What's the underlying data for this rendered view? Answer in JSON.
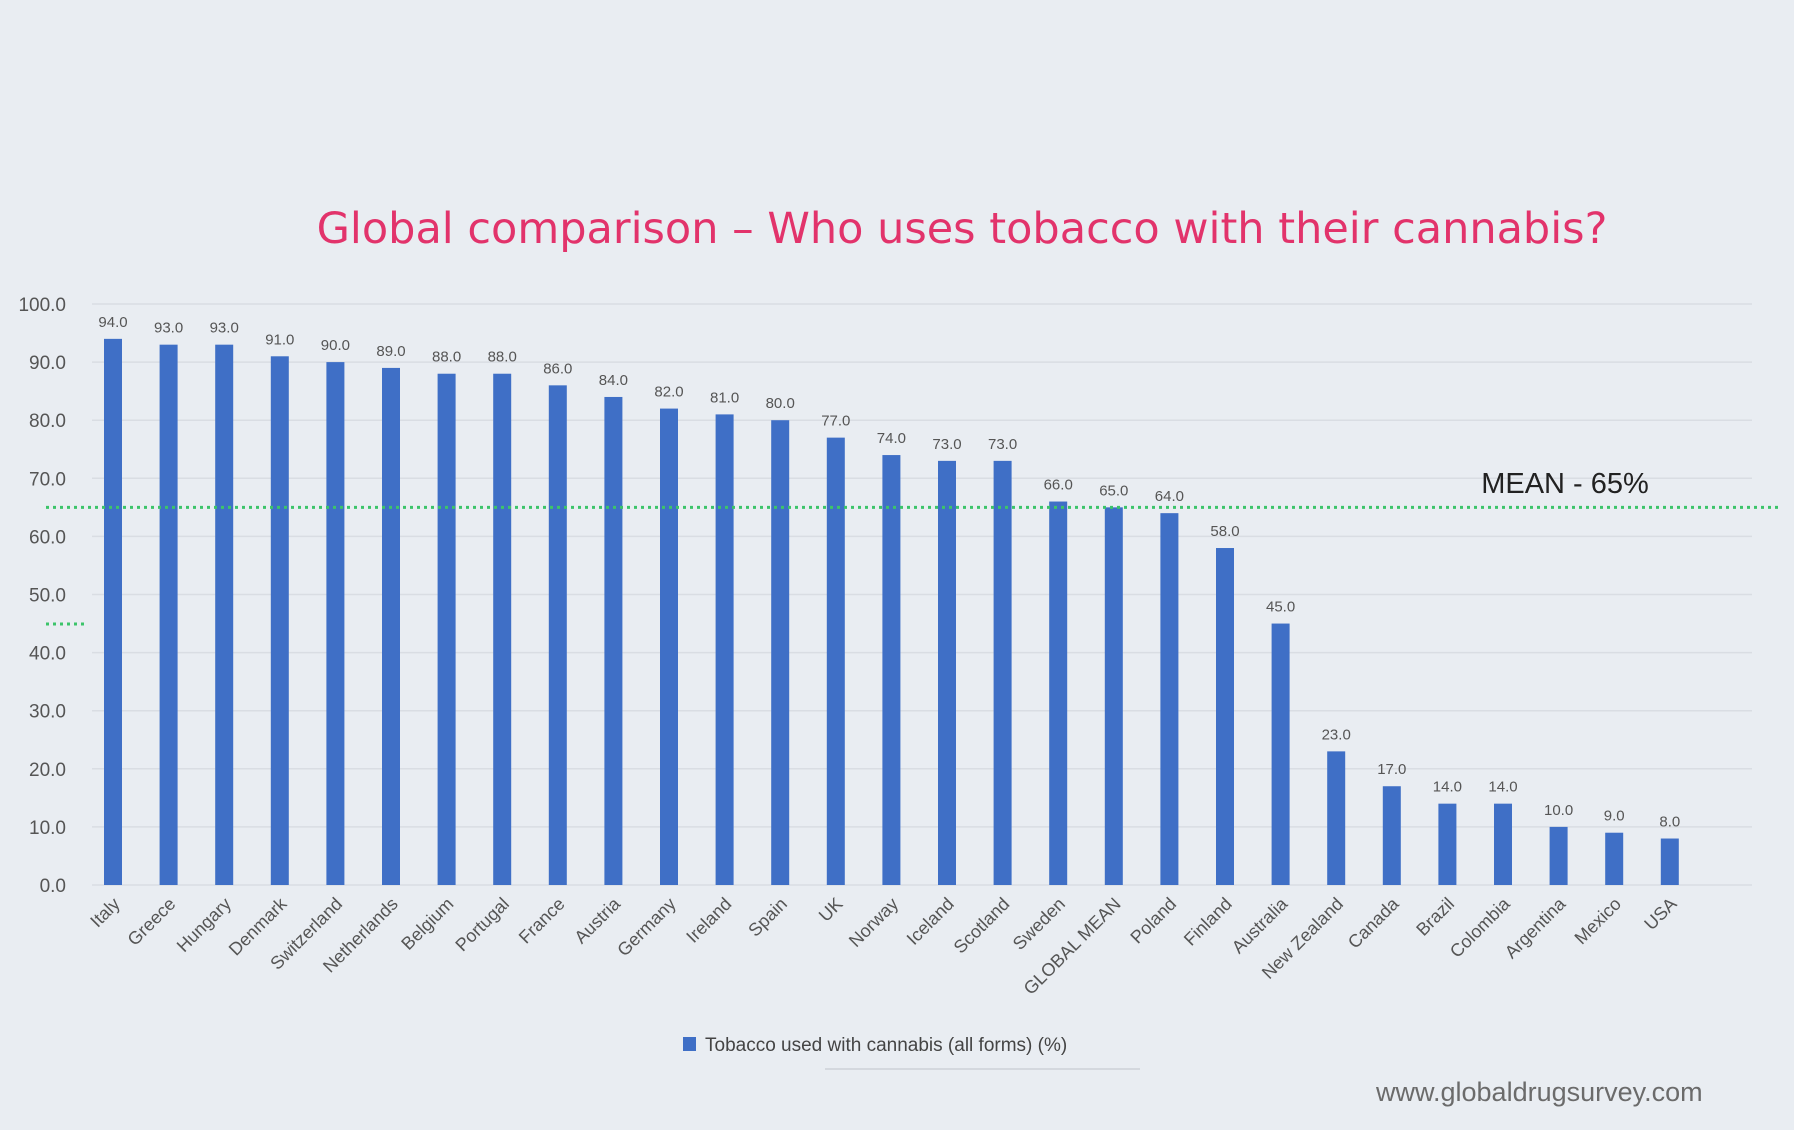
{
  "chart_data": {
    "type": "bar",
    "title": "Global comparison – Who uses tobacco with their cannabis?",
    "categories": [
      "Italy",
      "Greece",
      "Hungary",
      "Denmark",
      "Switzerland",
      "Netherlands",
      "Belgium",
      "Portugal",
      "France",
      "Austria",
      "Germany",
      "Ireland",
      "Spain",
      "UK",
      "Norway",
      "Iceland",
      "Scotland",
      "Sweden",
      "GLOBAL MEAN",
      "Poland",
      "Finland",
      "Australia",
      "New Zealand",
      "Canada",
      "Brazil",
      "Colombia",
      "Argentina",
      "Mexico",
      "USA"
    ],
    "series": [
      {
        "name": "Tobacco used with cannabis (all forms) (%)",
        "values": [
          94,
          93,
          93,
          91,
          90,
          89,
          88,
          88,
          86,
          84,
          82,
          81,
          80,
          77,
          74,
          73,
          73,
          66,
          65,
          64,
          58,
          45,
          23,
          17,
          14,
          14,
          10,
          9,
          8
        ],
        "color": "#3f6fc6"
      }
    ],
    "ylim": [
      0,
      100
    ],
    "yticks": [
      "0.0",
      "10.0",
      "20.0",
      "30.0",
      "40.0",
      "50.0",
      "60.0",
      "70.0",
      "80.0",
      "90.0",
      "100.0"
    ],
    "grid": true,
    "legend_placement": "bottom",
    "reference_line": {
      "value": 65,
      "label": "MEAN - 65%",
      "style": "dotted",
      "color": "#3cc46a"
    },
    "title_color": "#e2336b"
  },
  "footer": {
    "watermark": "www.globaldrugsurvey.com"
  }
}
